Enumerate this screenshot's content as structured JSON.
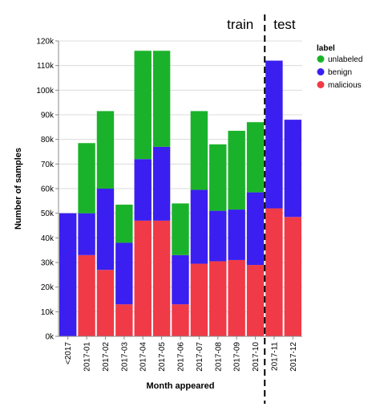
{
  "chart_data": {
    "type": "bar",
    "stacked": true,
    "xlabel": "Month appeared",
    "ylabel": "Number of samples",
    "ylim": [
      0,
      120000
    ],
    "yticks": [
      0,
      10000,
      20000,
      30000,
      40000,
      50000,
      60000,
      70000,
      80000,
      90000,
      100000,
      110000,
      120000
    ],
    "ytick_labels": [
      "0k",
      "10k",
      "20k",
      "30k",
      "40k",
      "50k",
      "60k",
      "70k",
      "80k",
      "90k",
      "100k",
      "110k",
      "120k"
    ],
    "grid": true,
    "categories": [
      "<2017",
      "2017-01",
      "2017-02",
      "2017-03",
      "2017-04",
      "2017-05",
      "2017-06",
      "2017-07",
      "2017-08",
      "2017-09",
      "2017-10",
      "2017-11",
      "2017-12"
    ],
    "series": [
      {
        "name": "malicious",
        "color": "#f03a47",
        "values": [
          0,
          33000,
          27000,
          13000,
          47000,
          47000,
          13000,
          29500,
          30500,
          31000,
          29000,
          52000,
          48500
        ]
      },
      {
        "name": "benign",
        "color": "#3a1ff0",
        "values": [
          50000,
          17000,
          33000,
          25000,
          25000,
          30000,
          20000,
          30000,
          20500,
          20500,
          29500,
          60000,
          39500
        ]
      },
      {
        "name": "unlabeled",
        "color": "#1bb22b",
        "values": [
          0,
          28500,
          31500,
          15500,
          44000,
          39000,
          21000,
          32000,
          27000,
          32000,
          28500,
          0,
          0
        ]
      }
    ],
    "legend": {
      "title": "label",
      "placement": "top-right",
      "entries": [
        "unlabeled",
        "benign",
        "malicious"
      ]
    },
    "annotations": {
      "split_after": "2017-10",
      "left_text": "train",
      "right_text": "test"
    }
  }
}
